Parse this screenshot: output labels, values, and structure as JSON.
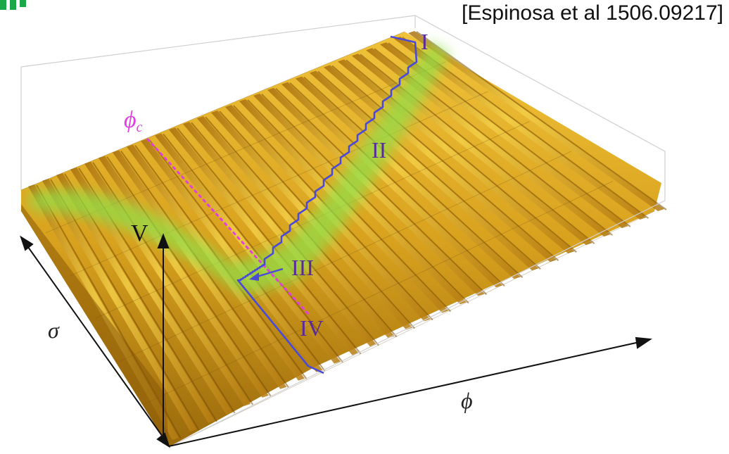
{
  "citation": "[Espinosa et al 1506.09217]",
  "labels": {
    "v_axis": "V",
    "sigma_axis": "σ",
    "phi_axis": "ϕ",
    "phi_c": "ϕc",
    "region_I": "I",
    "region_II": "II",
    "region_III": "III",
    "region_IV": "IV"
  },
  "colors": {
    "surface_gold": "#d9a21e",
    "surface_shadow": "#8a5a08",
    "valley_green": "#8fe04a",
    "path_blue": "#4a4ad8",
    "phi_c_magenta": "#e040e0",
    "label_purple": "#5a2a9a",
    "corner_green": "#1aa84a"
  }
}
